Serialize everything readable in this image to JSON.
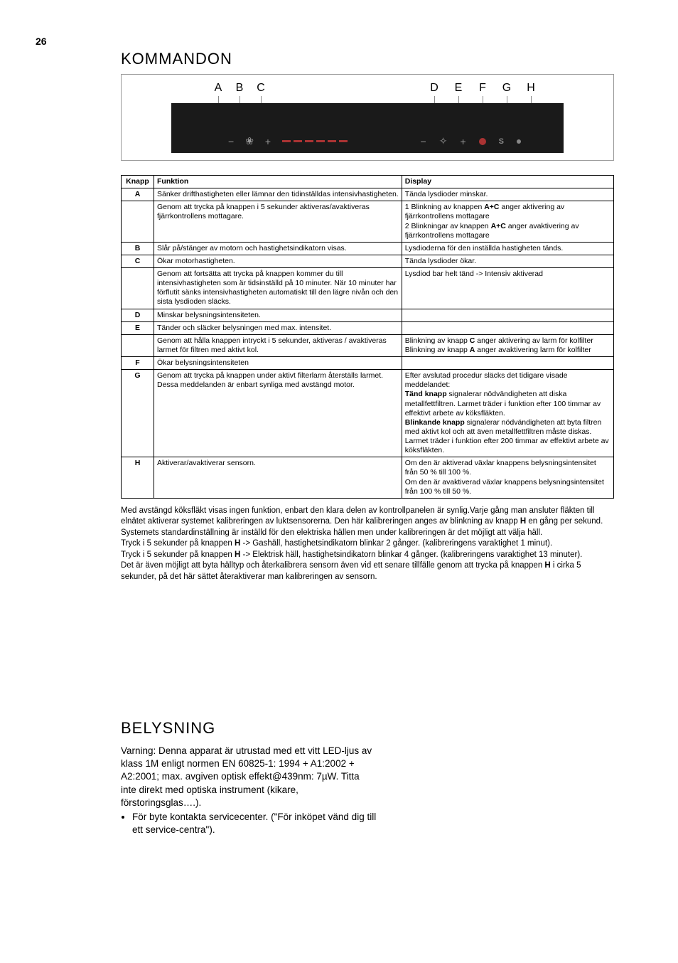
{
  "page_number": "26",
  "sections": {
    "kommandon_title": "KOMMANDON",
    "belysning_title": "BELYSNING"
  },
  "panel_labels": [
    "A",
    "B",
    "C",
    "D",
    "E",
    "F",
    "G",
    "H"
  ],
  "table": {
    "headers": {
      "knapp": "Knapp",
      "funktion": "Funktion",
      "display": "Display"
    },
    "rows": [
      {
        "k": "A",
        "f": "Sänker drifthastigheten eller lämnar den tidinställdas intensivhastigheten.",
        "d": "Tända lysdioder minskar."
      },
      {
        "k": "",
        "f": "Genom att trycka på knappen i 5 sekunder aktiveras/avaktiveras fjärrkontrollens mottagare.",
        "d": "1 Blinkning av knappen <b>A+C</b> anger aktivering av fjärrkontrollens mottagare\n2 Blinkningar av knappen <b>A+C</b> anger avaktivering av fjärrkontrollens mottagare"
      },
      {
        "k": "B",
        "f": "Slår på/stänger av motorn och hastighetsindikatorn visas.",
        "d": "Lysdioderna för den inställda hastigheten tänds."
      },
      {
        "k": "C",
        "f": "Ökar motorhastigheten.",
        "d": "Tända lysdioder ökar."
      },
      {
        "k": "",
        "f": "Genom att fortsätta att trycka på knappen kommer du till intensivhastigheten som är tidsinställd på 10 minuter. När 10 minuter har förflutit sänks intensivhastigheten automatiskt till den lägre nivån och den sista lysdioden släcks.",
        "d": "Lysdiod bar helt tänd -> Intensiv aktiverad"
      },
      {
        "k": "D",
        "f": "Minskar belysningsintensiteten.",
        "d": ""
      },
      {
        "k": "E",
        "f": "Tänder och släcker belysningen med max. intensitet.",
        "d": ""
      },
      {
        "k": "",
        "f": "Genom att hålla knappen intryckt i 5 sekunder, aktiveras / avaktiveras larmet för filtren med aktivt kol.",
        "d": "Blinkning av knapp <b>C</b> anger aktivering av larm för kolfilter\nBlinkning av knapp <b>A</b> anger avaktivering larm för kolfilter"
      },
      {
        "k": "F",
        "f": "Ökar belysningsintensiteten",
        "d": ""
      },
      {
        "k": "G",
        "f": "Genom att trycka på knappen under aktivt filterlarm återställs larmet. Dessa meddelanden är enbart synliga med avstängd motor.",
        "d": "Efter avslutad procedur släcks det tidigare visade meddelandet:\n<b>Tänd knapp</b> signalerar nödvändigheten att diska metallfettfiltren. Larmet träder i funktion efter 100 timmar av effektivt arbete av köksfläkten.\n<b>Blinkande knapp</b> signalerar nödvändigheten att byta filtren med aktivt kol och att även metallfettfiltren måste diskas. Larmet träder i funktion efter 200 timmar av effektivt arbete av köksfläkten."
      },
      {
        "k": "H",
        "f": "Aktiverar/avaktiverar sensorn.",
        "d": "Om den är aktiverad växlar knappens belysningsintensitet från 50 % till 100 %.\nOm den är avaktiverad växlar knappens belysningsintensitet från 100 % till 50 %."
      }
    ]
  },
  "paragraph": "Med avstängd köksfläkt visas ingen funktion, enbart den klara delen av kontrollpanelen är synlig.Varje gång man ansluter fläkten till elnätet aktiverar systemet kalibreringen av luktsensorerna. Den här kalibreringen anges av blinkning av knapp <b>H</b> en gång per sekund. Systemets standardinställning är inställd för den elektriska hällen men under kalibreringen är det möjligt att välja häll.\nTryck i 5 sekunder  på knappen <b>H</b> -> Gashäll, hastighetsindikatorn blinkar 2 gånger. (kalibreringens varaktighet 1 minut).\nTryck i 5 sekunder  på knappen <b>H</b> -> Elektrisk häll, hastighetsindikatorn blinkar 4 gånger. (kalibreringens varaktighet 13 minuter).\nDet är även möjligt att byta hälltyp och återkalibrera sensorn även vid ett senare tillfälle genom att trycka på knappen <b>H</b> i cirka 5 sekunder, på det här sättet återaktiverar man kalibreringen av sensorn.",
  "belysning_body": "Varning: Denna apparat är utrustad med ett vitt LED-ljus av klass 1M enligt normen EN 60825-1: 1994 + A1:2002 + A2:2001; max. avgiven optisk effekt@439nm: 7µW. Titta inte direkt med optiska instrument (kikare, förstoringsglas….).",
  "belysning_bullet": "För byte kontakta servicecenter. (\"För inköpet vänd dig till ett service-centra\")."
}
